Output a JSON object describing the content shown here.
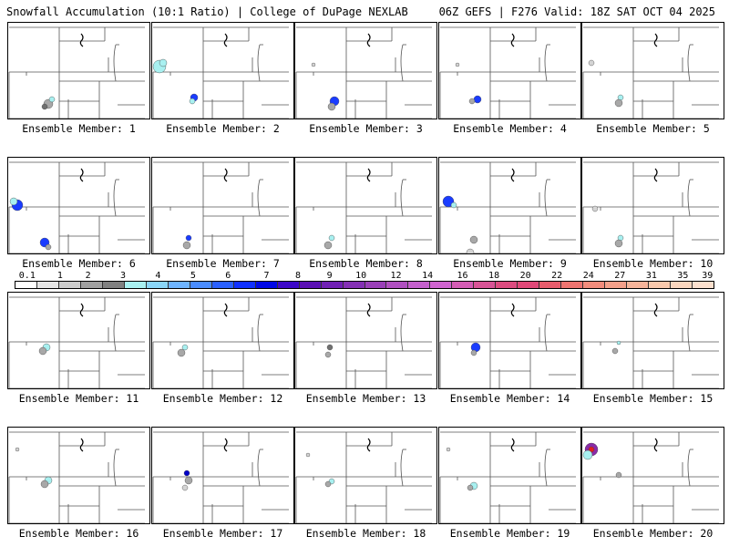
{
  "header": {
    "left": "Snowfall Accumulation (10:1 Ratio) | College of DuPage NEXLAB",
    "right": "06Z GEFS | F276 Valid: 18Z SAT OCT 04 2025"
  },
  "colors": {
    "light_gray": "#d4d4d4",
    "mid_gray": "#a8a8a8",
    "dark_gray": "#707070",
    "cyan": "#a8f0f0",
    "blue": "#1a3cff",
    "deep_blue": "#0000c8",
    "purple": "#8a2aa8",
    "red": "#e02020"
  },
  "legend": {
    "ticks": [
      "0.1",
      "1",
      "2",
      "3",
      "4",
      "5",
      "6",
      "7",
      "8",
      "9",
      "10",
      "12",
      "14",
      "16",
      "18",
      "20",
      "22",
      "24",
      "27",
      "31",
      "35",
      "39"
    ],
    "colors": [
      "#ffffff",
      "#e6e6e6",
      "#cccccc",
      "#a0a0a0",
      "#808080",
      "#a8f0f0",
      "#8ad6f8",
      "#6eb4ff",
      "#4a8cff",
      "#2a60ff",
      "#1030ff",
      "#0008e6",
      "#3c08c8",
      "#5a10b4",
      "#7020b4",
      "#8430b4",
      "#9a40b8",
      "#b050c0",
      "#c460cc",
      "#d064d0",
      "#d45cb4",
      "#d85496",
      "#dc4c80",
      "#e04878",
      "#e85c6c",
      "#ee7470",
      "#f28c7c",
      "#f4a08a",
      "#f6b49a",
      "#f8c8ac",
      "#fad6be",
      "#fce0ce"
    ]
  },
  "members": [
    {
      "label": "Ensemble Member: 1",
      "blobs": [
        {
          "x": 44,
          "y": 89,
          "r": 5,
          "level": "mid_gray"
        },
        {
          "x": 48,
          "y": 84,
          "r": 3,
          "level": "cyan"
        },
        {
          "x": 40,
          "y": 92,
          "r": 3,
          "level": "dark_gray"
        }
      ]
    },
    {
      "label": "Ensemble Member: 2",
      "blobs": [
        {
          "x": 8,
          "y": 48,
          "r": 7,
          "level": "cyan"
        },
        {
          "x": 12,
          "y": 44,
          "r": 4,
          "level": "cyan"
        },
        {
          "x": 46,
          "y": 82,
          "r": 4,
          "level": "blue"
        },
        {
          "x": 44,
          "y": 86,
          "r": 3,
          "level": "cyan"
        }
      ]
    },
    {
      "label": "Ensemble Member: 3",
      "blobs": [
        {
          "x": 43,
          "y": 86,
          "r": 5,
          "level": "blue"
        },
        {
          "x": 40,
          "y": 92,
          "r": 4,
          "level": "mid_gray"
        },
        {
          "x": 20,
          "y": 46,
          "r": 2,
          "level": "light_gray"
        }
      ]
    },
    {
      "label": "Ensemble Member: 4",
      "blobs": [
        {
          "x": 42,
          "y": 84,
          "r": 4,
          "level": "blue"
        },
        {
          "x": 36,
          "y": 86,
          "r": 3,
          "level": "mid_gray"
        },
        {
          "x": 20,
          "y": 46,
          "r": 2,
          "level": "light_gray"
        }
      ]
    },
    {
      "label": "Ensemble Member: 5",
      "blobs": [
        {
          "x": 42,
          "y": 82,
          "r": 3,
          "level": "cyan"
        },
        {
          "x": 40,
          "y": 88,
          "r": 4,
          "level": "mid_gray"
        },
        {
          "x": 10,
          "y": 44,
          "r": 3,
          "level": "light_gray"
        }
      ]
    },
    {
      "label": "Ensemble Member: 6",
      "blobs": [
        {
          "x": 10,
          "y": 52,
          "r": 6,
          "level": "blue"
        },
        {
          "x": 6,
          "y": 48,
          "r": 4,
          "level": "cyan"
        },
        {
          "x": 40,
          "y": 93,
          "r": 5,
          "level": "blue"
        },
        {
          "x": 44,
          "y": 98,
          "r": 3,
          "level": "mid_gray"
        }
      ]
    },
    {
      "label": "Ensemble Member: 7",
      "blobs": [
        {
          "x": 40,
          "y": 88,
          "r": 3,
          "level": "blue"
        },
        {
          "x": 38,
          "y": 96,
          "r": 4,
          "level": "mid_gray"
        }
      ]
    },
    {
      "label": "Ensemble Member: 8",
      "blobs": [
        {
          "x": 40,
          "y": 88,
          "r": 3,
          "level": "cyan"
        },
        {
          "x": 36,
          "y": 96,
          "r": 4,
          "level": "mid_gray"
        }
      ]
    },
    {
      "label": "Ensemble Member: 9",
      "blobs": [
        {
          "x": 10,
          "y": 48,
          "r": 6,
          "level": "blue"
        },
        {
          "x": 16,
          "y": 52,
          "r": 3,
          "level": "cyan"
        },
        {
          "x": 38,
          "y": 90,
          "r": 4,
          "level": "mid_gray"
        },
        {
          "x": 34,
          "y": 104,
          "r": 4,
          "level": "light_gray"
        }
      ]
    },
    {
      "label": "Ensemble Member: 10",
      "blobs": [
        {
          "x": 42,
          "y": 88,
          "r": 3,
          "level": "cyan"
        },
        {
          "x": 40,
          "y": 94,
          "r": 4,
          "level": "mid_gray"
        },
        {
          "x": 14,
          "y": 56,
          "r": 3,
          "level": "light_gray"
        }
      ]
    },
    {
      "label": "Ensemble Member: 11",
      "blobs": [
        {
          "x": 42,
          "y": 380,
          "r": 4,
          "level": "cyan",
          "abs": true
        },
        {
          "x": 38,
          "y": 384,
          "r": 4,
          "level": "mid_gray",
          "abs": true
        }
      ]
    },
    {
      "label": "Ensemble Member: 12",
      "blobs": [
        {
          "x": 36,
          "y": 380,
          "r": 3,
          "level": "cyan",
          "abs": true
        },
        {
          "x": 32,
          "y": 386,
          "r": 4,
          "level": "mid_gray",
          "abs": true
        }
      ]
    },
    {
      "label": "Ensemble Member: 13",
      "blobs": [
        {
          "x": 38,
          "y": 380,
          "r": 3,
          "level": "dark_gray",
          "abs": true
        },
        {
          "x": 36,
          "y": 388,
          "r": 3,
          "level": "mid_gray",
          "abs": true
        }
      ]
    },
    {
      "label": "Ensemble Member: 14",
      "blobs": [
        {
          "x": 40,
          "y": 380,
          "r": 5,
          "level": "blue",
          "abs": true
        },
        {
          "x": 38,
          "y": 386,
          "r": 3,
          "level": "mid_gray",
          "abs": true
        }
      ]
    },
    {
      "label": "Ensemble Member: 15",
      "blobs": [
        {
          "x": 40,
          "y": 375,
          "r": 2,
          "level": "cyan",
          "abs": true
        },
        {
          "x": 36,
          "y": 384,
          "r": 3,
          "level": "mid_gray",
          "abs": true
        }
      ]
    },
    {
      "label": "Ensemble Member: 16",
      "blobs": [
        {
          "x": 44,
          "y": 526,
          "r": 4,
          "level": "cyan",
          "abs": true
        },
        {
          "x": 40,
          "y": 530,
          "r": 4,
          "level": "mid_gray",
          "abs": true
        },
        {
          "x": 10,
          "y": 492,
          "r": 2,
          "level": "light_gray",
          "abs": true
        }
      ]
    },
    {
      "label": "Ensemble Member: 17",
      "blobs": [
        {
          "x": 38,
          "y": 518,
          "r": 3,
          "level": "deep_blue",
          "abs": true
        },
        {
          "x": 40,
          "y": 526,
          "r": 4,
          "level": "mid_gray",
          "abs": true
        },
        {
          "x": 36,
          "y": 534,
          "r": 3,
          "level": "light_gray",
          "abs": true
        }
      ]
    },
    {
      "label": "Ensemble Member: 18",
      "blobs": [
        {
          "x": 40,
          "y": 527,
          "r": 3,
          "level": "cyan",
          "abs": true
        },
        {
          "x": 36,
          "y": 530,
          "r": 3,
          "level": "mid_gray",
          "abs": true
        },
        {
          "x": 14,
          "y": 498,
          "r": 2,
          "level": "light_gray",
          "abs": true
        }
      ]
    },
    {
      "label": "Ensemble Member: 19",
      "blobs": [
        {
          "x": 38,
          "y": 532,
          "r": 4,
          "level": "cyan",
          "abs": true
        },
        {
          "x": 34,
          "y": 534,
          "r": 3,
          "level": "mid_gray",
          "abs": true
        },
        {
          "x": 10,
          "y": 492,
          "r": 2,
          "level": "light_gray",
          "abs": true
        }
      ]
    },
    {
      "label": "Ensemble Member: 20",
      "blobs": [
        {
          "x": 10,
          "y": 492,
          "r": 7,
          "level": "purple",
          "abs": true
        },
        {
          "x": 10,
          "y": 492,
          "r": 3,
          "level": "red",
          "abs": true
        },
        {
          "x": 6,
          "y": 498,
          "r": 5,
          "level": "cyan",
          "abs": true
        },
        {
          "x": 40,
          "y": 520,
          "r": 3,
          "level": "mid_gray",
          "abs": true
        }
      ]
    }
  ]
}
